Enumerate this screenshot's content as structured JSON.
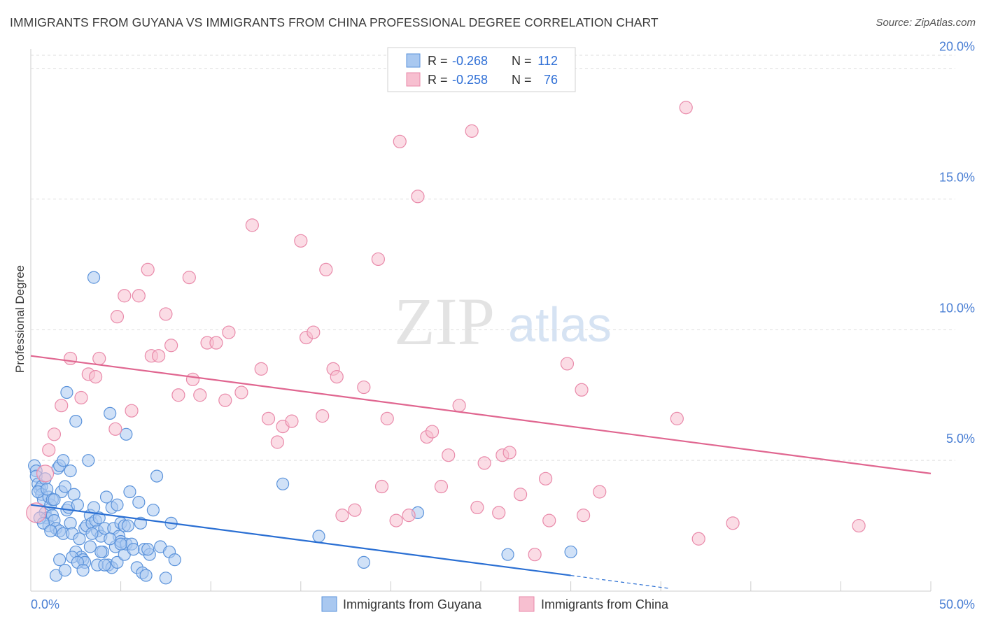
{
  "title": "IMMIGRANTS FROM GUYANA VS IMMIGRANTS FROM CHINA PROFESSIONAL DEGREE CORRELATION CHART",
  "source": "Source: ZipAtlas.com",
  "watermark": {
    "zip": "ZIP",
    "atlas": "atlas"
  },
  "colors": {
    "guyana_fill": "#a9c8f0",
    "guyana_stroke": "#5b93db",
    "guyana_line": "#2a6fd3",
    "china_fill": "#f7bfd0",
    "china_stroke": "#e98aaa",
    "china_line": "#e06690",
    "axis_text": "#4a7fd4",
    "grid": "#dddddd"
  },
  "legend": {
    "rows": [
      {
        "r_label": "R =",
        "r_value": "-0.268",
        "n_label": "N =",
        "n_value": "112"
      },
      {
        "r_label": "R =",
        "r_value": "-0.258",
        "n_label": "N =",
        "n_value": "76"
      }
    ]
  },
  "chart_data": {
    "type": "scatter",
    "title": "IMMIGRANTS FROM GUYANA VS IMMIGRANTS FROM CHINA PROFESSIONAL DEGREE CORRELATION CHART",
    "xlabel": "",
    "ylabel": "Professional Degree",
    "xlim": [
      0,
      50
    ],
    "ylim": [
      0,
      20.5
    ],
    "x_tick_labels": [
      "0.0%",
      "50.0%"
    ],
    "y_ticks": [
      5,
      10,
      15,
      20
    ],
    "y_tick_labels": [
      "5.0%",
      "10.0%",
      "15.0%",
      "20.0%"
    ],
    "legend_position": "top-center",
    "series": [
      {
        "name": "Immigrants from Guyana",
        "r": -0.268,
        "n": 112,
        "trend": {
          "x": [
            0,
            30
          ],
          "y": [
            3.3,
            0.6
          ],
          "dashed_extension": {
            "x": [
              30,
              35.5
            ],
            "y": [
              0.6,
              0.1
            ]
          }
        },
        "points": [
          [
            0.2,
            4.8
          ],
          [
            0.3,
            4.6
          ],
          [
            0.3,
            4.4
          ],
          [
            0.4,
            4.1
          ],
          [
            0.5,
            3.9
          ],
          [
            0.6,
            4.0
          ],
          [
            0.6,
            3.7
          ],
          [
            0.7,
            3.5
          ],
          [
            0.8,
            4.3
          ],
          [
            0.8,
            3.0
          ],
          [
            0.9,
            2.8
          ],
          [
            1.0,
            3.6
          ],
          [
            1.0,
            2.5
          ],
          [
            1.1,
            3.3
          ],
          [
            1.2,
            3.5
          ],
          [
            1.2,
            2.9
          ],
          [
            1.3,
            2.7
          ],
          [
            1.4,
            2.4
          ],
          [
            1.5,
            4.7
          ],
          [
            1.6,
            4.8
          ],
          [
            1.6,
            2.3
          ],
          [
            1.7,
            3.8
          ],
          [
            1.8,
            5.0
          ],
          [
            1.8,
            2.2
          ],
          [
            1.9,
            4.0
          ],
          [
            2.0,
            7.6
          ],
          [
            2.0,
            3.1
          ],
          [
            2.1,
            3.2
          ],
          [
            2.2,
            4.6
          ],
          [
            2.2,
            2.6
          ],
          [
            2.3,
            2.2
          ],
          [
            2.4,
            3.7
          ],
          [
            2.5,
            6.5
          ],
          [
            2.5,
            1.5
          ],
          [
            2.6,
            3.3
          ],
          [
            2.7,
            2.0
          ],
          [
            2.8,
            1.3
          ],
          [
            2.9,
            1.2
          ],
          [
            3.0,
            2.4
          ],
          [
            3.0,
            1.1
          ],
          [
            3.1,
            2.5
          ],
          [
            3.2,
            5.0
          ],
          [
            3.3,
            2.9
          ],
          [
            3.3,
            1.7
          ],
          [
            3.4,
            2.6
          ],
          [
            3.5,
            3.2
          ],
          [
            3.5,
            12.0
          ],
          [
            3.6,
            2.7
          ],
          [
            3.7,
            2.3
          ],
          [
            3.7,
            1.0
          ],
          [
            3.8,
            2.8
          ],
          [
            3.9,
            2.1
          ],
          [
            4.0,
            1.5
          ],
          [
            4.1,
            2.4
          ],
          [
            4.2,
            3.6
          ],
          [
            4.3,
            1.0
          ],
          [
            4.4,
            6.8
          ],
          [
            4.5,
            3.2
          ],
          [
            4.5,
            0.9
          ],
          [
            4.6,
            2.4
          ],
          [
            4.7,
            1.7
          ],
          [
            4.8,
            3.3
          ],
          [
            4.8,
            1.1
          ],
          [
            4.9,
            2.1
          ],
          [
            5.0,
            2.6
          ],
          [
            5.0,
            1.9
          ],
          [
            5.2,
            1.4
          ],
          [
            5.2,
            2.5
          ],
          [
            5.3,
            6.0
          ],
          [
            5.3,
            1.8
          ],
          [
            5.4,
            2.5
          ],
          [
            5.6,
            1.8
          ],
          [
            5.7,
            1.6
          ],
          [
            5.9,
            0.9
          ],
          [
            6.0,
            3.4
          ],
          [
            6.1,
            2.6
          ],
          [
            6.2,
            0.7
          ],
          [
            6.3,
            1.6
          ],
          [
            6.4,
            0.6
          ],
          [
            6.6,
            1.4
          ],
          [
            6.8,
            3.1
          ],
          [
            7.0,
            4.4
          ],
          [
            7.2,
            1.7
          ],
          [
            7.5,
            0.5
          ],
          [
            7.7,
            1.5
          ],
          [
            7.8,
            2.6
          ],
          [
            8.0,
            1.2
          ],
          [
            5.0,
            1.8
          ],
          [
            5.5,
            3.8
          ],
          [
            4.1,
            1.0
          ],
          [
            0.4,
            3.8
          ],
          [
            0.5,
            2.8
          ],
          [
            0.7,
            2.6
          ],
          [
            0.9,
            3.9
          ],
          [
            1.1,
            2.3
          ],
          [
            1.3,
            3.5
          ],
          [
            1.4,
            0.6
          ],
          [
            1.6,
            1.2
          ],
          [
            1.9,
            0.8
          ],
          [
            2.3,
            1.3
          ],
          [
            2.6,
            1.1
          ],
          [
            2.9,
            0.8
          ],
          [
            3.4,
            2.2
          ],
          [
            3.9,
            1.5
          ],
          [
            4.4,
            2.0
          ],
          [
            6.5,
            1.6
          ],
          [
            14.0,
            4.1
          ],
          [
            16.0,
            2.1
          ],
          [
            18.5,
            1.1
          ],
          [
            21.5,
            3.0
          ],
          [
            26.5,
            1.4
          ],
          [
            30.0,
            1.5
          ]
        ]
      },
      {
        "name": "Immigrants from China",
        "r": -0.258,
        "n": 76,
        "trend": {
          "x": [
            0,
            50
          ],
          "y": [
            9.0,
            4.5
          ]
        },
        "points": [
          [
            0.3,
            3.0
          ],
          [
            0.8,
            4.5
          ],
          [
            1.0,
            5.4
          ],
          [
            1.3,
            6.0
          ],
          [
            1.7,
            7.1
          ],
          [
            2.2,
            8.9
          ],
          [
            2.8,
            7.4
          ],
          [
            3.2,
            8.3
          ],
          [
            3.6,
            8.2
          ],
          [
            3.8,
            8.9
          ],
          [
            4.7,
            6.2
          ],
          [
            4.8,
            10.5
          ],
          [
            5.2,
            11.3
          ],
          [
            5.6,
            6.9
          ],
          [
            6.0,
            11.3
          ],
          [
            6.5,
            12.3
          ],
          [
            6.7,
            9.0
          ],
          [
            7.1,
            9.0
          ],
          [
            7.5,
            10.6
          ],
          [
            7.8,
            9.4
          ],
          [
            8.2,
            7.5
          ],
          [
            8.8,
            12.0
          ],
          [
            9.0,
            8.1
          ],
          [
            9.4,
            7.5
          ],
          [
            9.8,
            9.5
          ],
          [
            10.3,
            9.5
          ],
          [
            10.8,
            7.3
          ],
          [
            11.0,
            9.9
          ],
          [
            11.7,
            7.6
          ],
          [
            12.3,
            14.0
          ],
          [
            12.8,
            8.5
          ],
          [
            13.2,
            6.6
          ],
          [
            13.7,
            5.7
          ],
          [
            14.0,
            6.3
          ],
          [
            14.5,
            6.5
          ],
          [
            15.0,
            13.4
          ],
          [
            15.3,
            9.7
          ],
          [
            15.7,
            9.9
          ],
          [
            16.2,
            6.7
          ],
          [
            16.4,
            12.3
          ],
          [
            16.8,
            8.5
          ],
          [
            17.0,
            8.2
          ],
          [
            17.3,
            2.9
          ],
          [
            18.0,
            3.1
          ],
          [
            18.5,
            7.8
          ],
          [
            19.3,
            12.7
          ],
          [
            19.5,
            4.0
          ],
          [
            19.8,
            6.6
          ],
          [
            20.3,
            2.7
          ],
          [
            20.5,
            17.2
          ],
          [
            21.0,
            2.9
          ],
          [
            21.5,
            15.1
          ],
          [
            22.0,
            5.9
          ],
          [
            22.3,
            6.1
          ],
          [
            22.8,
            4.0
          ],
          [
            23.2,
            5.2
          ],
          [
            23.8,
            7.1
          ],
          [
            24.5,
            17.6
          ],
          [
            24.8,
            3.2
          ],
          [
            25.2,
            4.9
          ],
          [
            26.0,
            3.0
          ],
          [
            26.2,
            5.2
          ],
          [
            26.6,
            5.3
          ],
          [
            27.2,
            3.7
          ],
          [
            28.0,
            1.4
          ],
          [
            28.6,
            4.3
          ],
          [
            28.8,
            2.7
          ],
          [
            29.8,
            8.7
          ],
          [
            30.6,
            7.7
          ],
          [
            30.7,
            2.9
          ],
          [
            31.6,
            3.8
          ],
          [
            36.4,
            18.5
          ],
          [
            35.9,
            6.6
          ],
          [
            37.1,
            2.0
          ],
          [
            39.0,
            2.6
          ],
          [
            46.0,
            2.5
          ]
        ]
      }
    ]
  },
  "bottom_legend": [
    {
      "label": "Immigrants from Guyana"
    },
    {
      "label": "Immigrants from China"
    }
  ]
}
